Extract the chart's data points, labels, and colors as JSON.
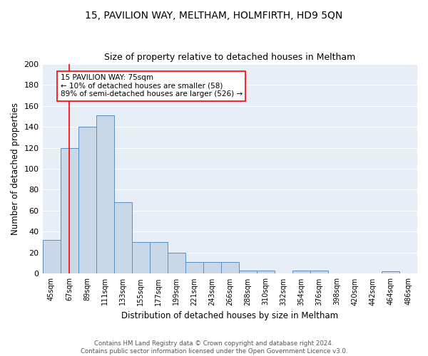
{
  "title": "15, PAVILION WAY, MELTHAM, HOLMFIRTH, HD9 5QN",
  "subtitle": "Size of property relative to detached houses in Meltham",
  "xlabel": "Distribution of detached houses by size in Meltham",
  "ylabel": "Number of detached properties",
  "categories": [
    "45sqm",
    "67sqm",
    "89sqm",
    "111sqm",
    "133sqm",
    "155sqm",
    "177sqm",
    "199sqm",
    "221sqm",
    "243sqm",
    "266sqm",
    "288sqm",
    "310sqm",
    "332sqm",
    "354sqm",
    "376sqm",
    "398sqm",
    "420sqm",
    "442sqm",
    "464sqm",
    "486sqm"
  ],
  "values": [
    32,
    120,
    140,
    151,
    68,
    30,
    30,
    20,
    11,
    11,
    11,
    3,
    3,
    0,
    3,
    3,
    0,
    0,
    0,
    2,
    0
  ],
  "bar_color": "#c8d8e8",
  "bar_edge_color": "#5a8fc0",
  "background_color": "#e8eef6",
  "grid_color": "#ffffff",
  "ylim": [
    0,
    200
  ],
  "yticks": [
    0,
    20,
    40,
    60,
    80,
    100,
    120,
    140,
    160,
    180,
    200
  ],
  "annotation_text_line1": "15 PAVILION WAY: 75sqm",
  "annotation_text_line2": "← 10% of detached houses are smaller (58)",
  "annotation_text_line3": "89% of semi-detached houses are larger (526) →",
  "red_line_x": 1.0,
  "footer_line1": "Contains HM Land Registry data © Crown copyright and database right 2024.",
  "footer_line2": "Contains public sector information licensed under the Open Government Licence v3.0."
}
